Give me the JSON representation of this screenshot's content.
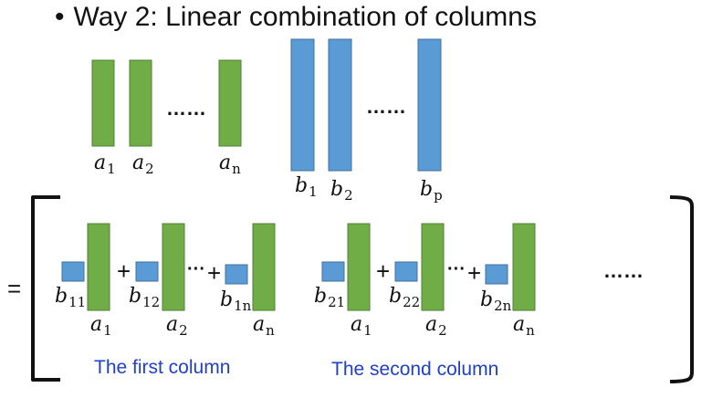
{
  "slide": {
    "bullet": "•",
    "title": "Way 2: Linear combination of columns"
  },
  "matrix_a": {
    "color": "#70ad47",
    "labels": [
      "a",
      "a",
      "a"
    ],
    "subs": [
      "1",
      "2",
      "n"
    ],
    "ellipsis": "……"
  },
  "matrix_b": {
    "color": "#5b9bd5",
    "labels": [
      "b",
      "b",
      "b"
    ],
    "subs": [
      "1",
      "2",
      "p"
    ],
    "ellipsis": "……"
  },
  "result": {
    "equals": "=",
    "plus": "+",
    "mid_dots": "···",
    "trailing_ellipsis": "……",
    "first_column": {
      "caption": "The first column",
      "coef_subs": [
        "11",
        "12",
        "1n"
      ],
      "a_subs": [
        "1",
        "2",
        "n"
      ]
    },
    "second_column": {
      "caption": "The second column",
      "coef_subs": [
        "21",
        "22",
        "2n"
      ],
      "a_subs": [
        "1",
        "2",
        "n"
      ]
    }
  }
}
